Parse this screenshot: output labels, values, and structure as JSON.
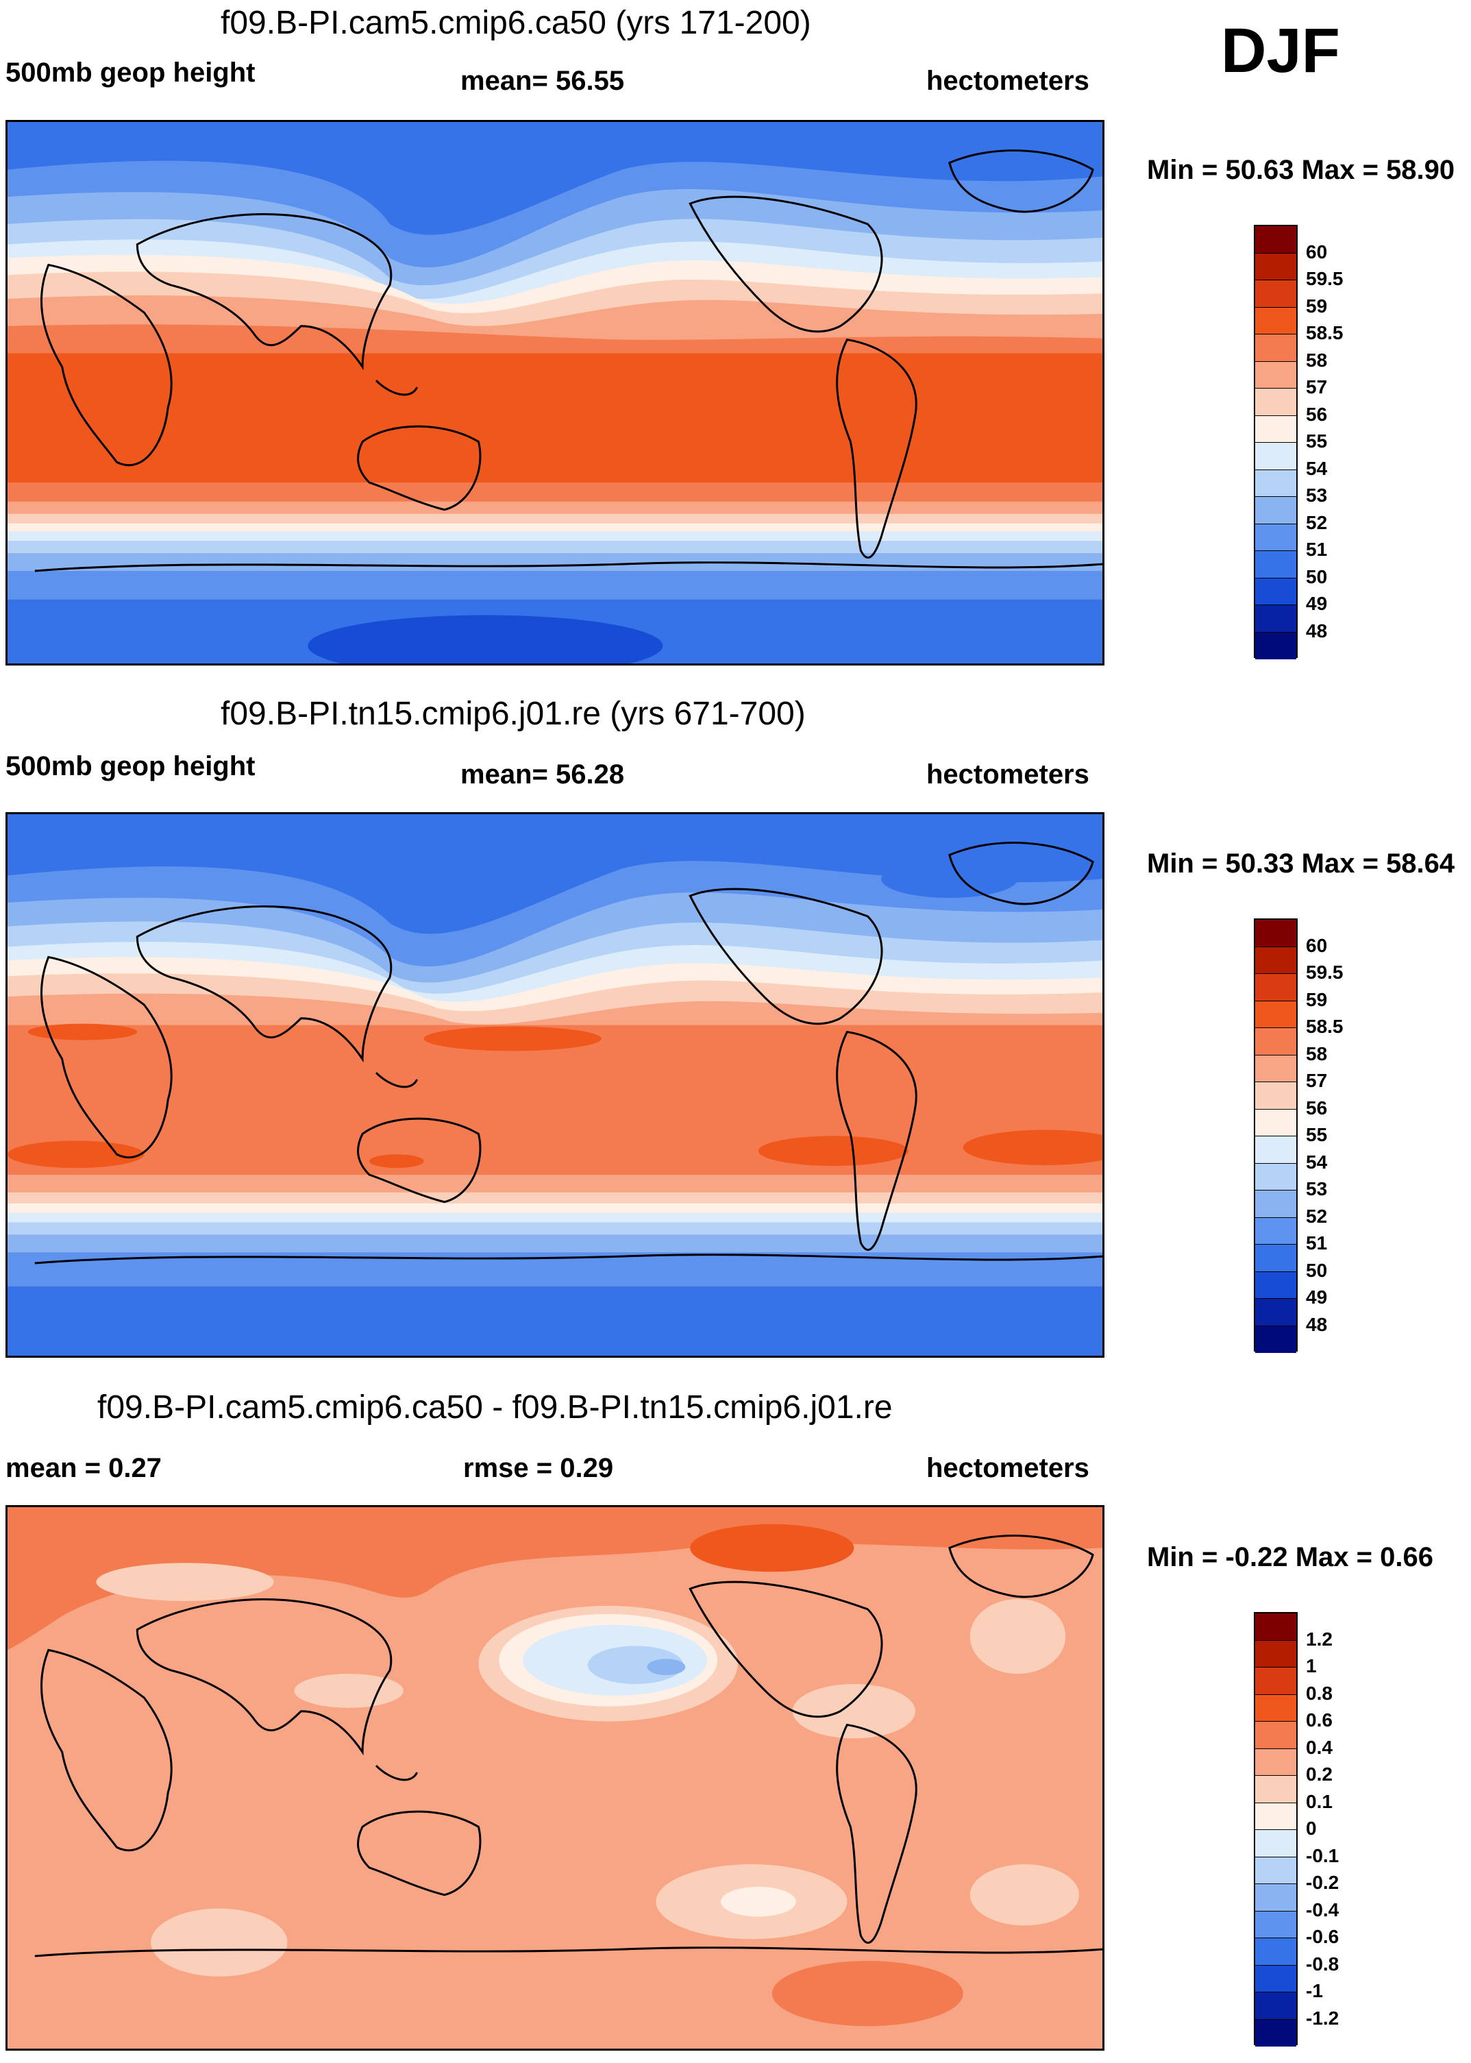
{
  "season": "DJF",
  "panels": [
    {
      "id": "p1",
      "title": "f09.B-PI.cam5.cmip6.ca50 (yrs 171-200)",
      "left_label": "500mb geop height",
      "center_label": "mean=  56.55",
      "right_label": "hectometers",
      "minmax": "Min =  50.63 Max =  58.90",
      "field": "500mb geopotential height climatology",
      "colorbar": {
        "labels": [
          "60",
          "59.5",
          "59",
          "58.5",
          "58",
          "57",
          "56",
          "55",
          "54",
          "53",
          "52",
          "51",
          "50",
          "49",
          "48"
        ],
        "colors": [
          "#7f0000",
          "#b51d00",
          "#d93c10",
          "#f0571c",
          "#f47b4f",
          "#f8a585",
          "#fbd0bb",
          "#fff0e6",
          "#dcecfa",
          "#b5d2f7",
          "#8ab3f2",
          "#5e92ef",
          "#3672e8",
          "#174cd4",
          "#0722a5",
          "#000a7a"
        ]
      }
    },
    {
      "id": "p2",
      "title": "f09.B-PI.tn15.cmip6.j01.re (yrs 671-700)",
      "left_label": "500mb geop height",
      "center_label": "mean=  56.28",
      "right_label": "hectometers",
      "minmax": "Min =  50.33 Max =  58.64",
      "field": "500mb geopotential height climatology",
      "colorbar": {
        "labels": [
          "60",
          "59.5",
          "59",
          "58.5",
          "58",
          "57",
          "56",
          "55",
          "54",
          "53",
          "52",
          "51",
          "50",
          "49",
          "48"
        ],
        "colors": [
          "#7f0000",
          "#b51d00",
          "#d93c10",
          "#f0571c",
          "#f47b4f",
          "#f8a585",
          "#fbd0bb",
          "#fff0e6",
          "#dcecfa",
          "#b5d2f7",
          "#8ab3f2",
          "#5e92ef",
          "#3672e8",
          "#174cd4",
          "#0722a5",
          "#000a7a"
        ]
      }
    },
    {
      "id": "p3",
      "title": "f09.B-PI.cam5.cmip6.ca50 - f09.B-PI.tn15.cmip6.j01.re",
      "left_label": "mean =   0.27",
      "center_label": "rmse =   0.29",
      "right_label": "hectometers",
      "minmax": "Min =  -0.22 Max =   0.66",
      "field": "difference",
      "colorbar": {
        "labels": [
          "1.2",
          "1",
          "0.8",
          "0.6",
          "0.4",
          "0.2",
          "0.1",
          "0",
          "-0.1",
          "-0.2",
          "-0.4",
          "-0.6",
          "-0.8",
          "-1",
          "-1.2"
        ],
        "colors": [
          "#7f0000",
          "#b51d00",
          "#d93c10",
          "#f0571c",
          "#f47b4f",
          "#f8a585",
          "#fbd0bb",
          "#fff0e6",
          "#dcecfa",
          "#b5d2f7",
          "#8ab3f2",
          "#5e92ef",
          "#3672e8",
          "#174cd4",
          "#0722a5",
          "#000a7a"
        ]
      }
    }
  ],
  "colors": {
    "deep_blue": "#3672e8",
    "mid_blue": "#5e92ef",
    "light_blue": "#b5d2f7",
    "pale": "#fff0e6",
    "peach": "#fbd0bb",
    "salmon": "#f8a585",
    "orange": "#f47b4f",
    "red_orange": "#f0571c",
    "coastline": "#000000"
  }
}
